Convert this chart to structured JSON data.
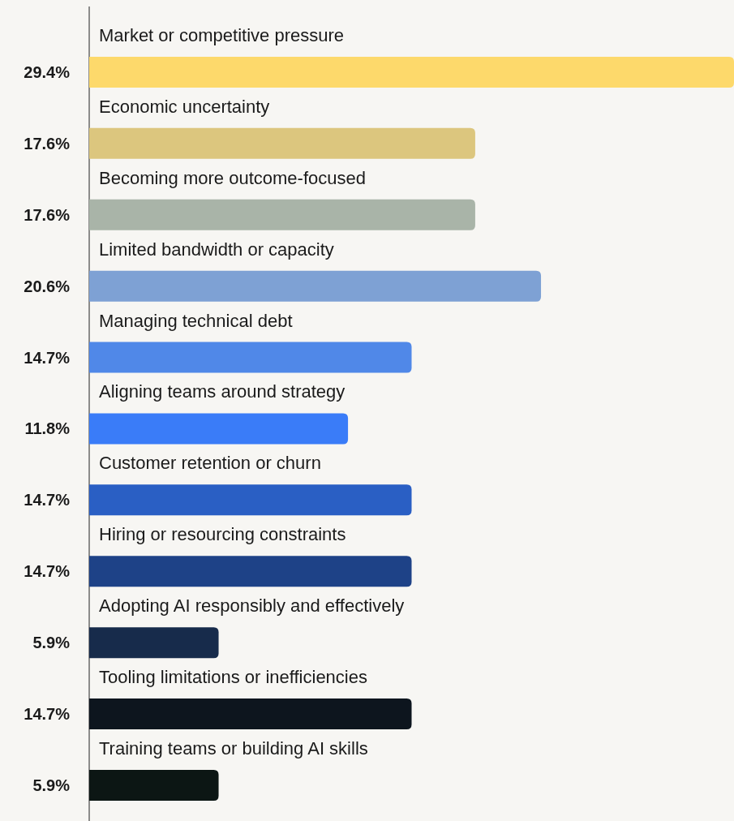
{
  "chart_data": {
    "type": "bar",
    "orientation": "horizontal",
    "value_labels": [
      "29.4%",
      "17.6%",
      "17.6%",
      "20.6%",
      "14.7%",
      "11.8%",
      "14.7%",
      "14.7%",
      "5.9%",
      "14.7%",
      "5.9%"
    ],
    "categories": [
      "Market or competitive pressure",
      "Economic uncertainty",
      "Becoming more outcome-focused",
      "Limited bandwidth or capacity",
      "Managing technical debt",
      "Aligning teams around strategy",
      "Customer retention or churn",
      "Hiring or resourcing constraints",
      "Adopting AI responsibly and effectively",
      "Tooling limitations or inefficiencies",
      "Training teams or building AI skills"
    ],
    "values": [
      29.4,
      17.6,
      17.6,
      20.6,
      14.7,
      11.8,
      14.7,
      14.7,
      5.9,
      14.7,
      5.9
    ],
    "colors": [
      "#fdd96b",
      "#dcc67e",
      "#a9b4a8",
      "#7ea1d4",
      "#5088e8",
      "#3a7cf8",
      "#2a5fc4",
      "#1e4287",
      "#172b4b",
      "#0d151e",
      "#0c1614"
    ]
  }
}
